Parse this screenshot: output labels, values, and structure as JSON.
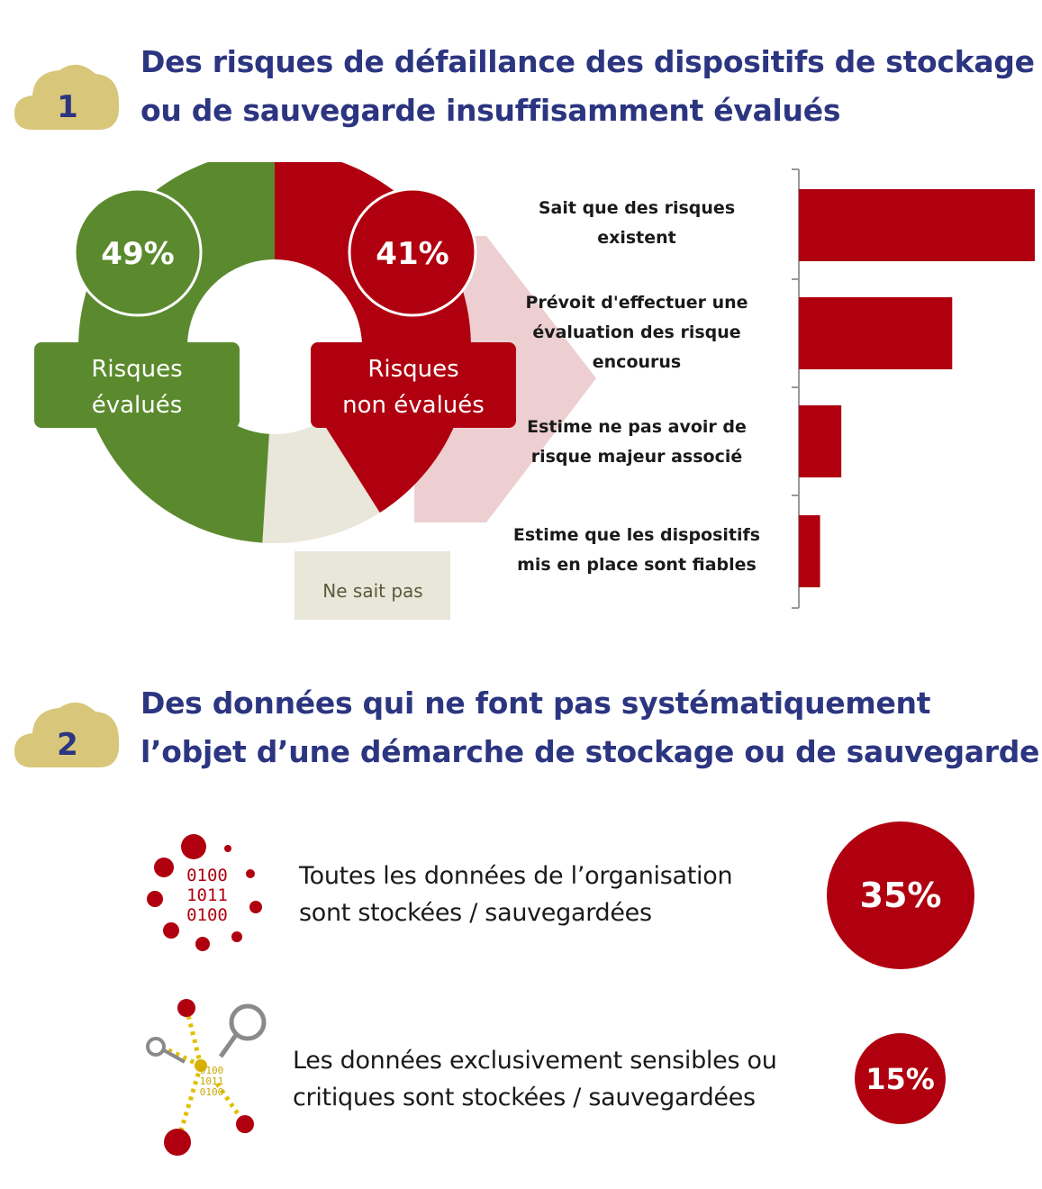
{
  "section1": {
    "number": "1",
    "title": "Des risques de défaillance des dispositifs de stockage\nou de sauvegarde insuffisamment évalués"
  },
  "section2": {
    "number": "2",
    "title": "Des données qui ne font pas systématiquement\nl’objet d’une démarche de stockage ou de sauvegarde"
  },
  "colors": {
    "green": "#5b8a2e",
    "red": "#b0000f",
    "beige": "#e9e6da",
    "pink": "#edcfd1",
    "navy": "#2c3580",
    "gold": "#d8c67a"
  },
  "chart_data": [
    {
      "type": "pie",
      "categories": [
        "Risques évalués",
        "Risques non évalués",
        "Ne sait pas"
      ],
      "values": [
        49,
        41,
        10
      ],
      "labels": {
        "evaluated_pct": "49%",
        "evaluated_line1": "Risques",
        "evaluated_line2": "évalués",
        "non_evaluated_pct": "41%",
        "non_evaluated_line1": "Risques",
        "non_evaluated_line2": "non évalués",
        "unknown": "Ne sait pas"
      }
    },
    {
      "type": "bar",
      "orientation": "horizontal",
      "categories": [
        "Sait que des risques\nexistent",
        "Prévoit d'effectuer une\névaluation des risque\nencourus",
        "Estime ne pas avoir de\nrisque majeur associé",
        "Estime que les dispositifs\nmis en place sont fiables"
      ],
      "values": [
        100,
        65,
        18,
        9
      ]
    }
  ],
  "stats": [
    {
      "text": "Toutes les données de l’organisation\nsont stockées / sauvegardées",
      "value": "35%",
      "icon": "binary-data-icon"
    },
    {
      "text": "Les données exclusivement sensibles ou\ncritiques sont stockées / sauvegardées",
      "value": "15%",
      "icon": "magnifier-data-icon"
    }
  ],
  "icon_binary": {
    "l1": "0100",
    "l2": "1011",
    "l3": "0100"
  }
}
